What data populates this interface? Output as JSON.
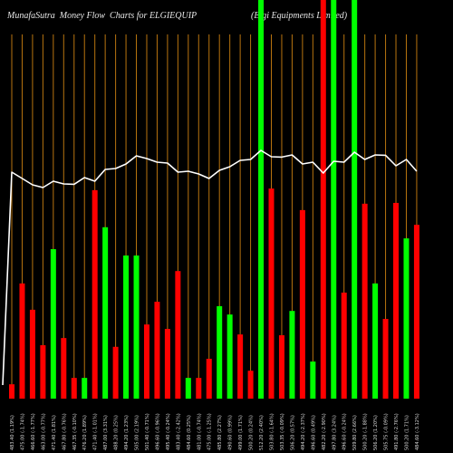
{
  "colors": {
    "background": "#000000",
    "grid": "#b8740f",
    "price_line": "#ffffff",
    "text": "#e6e6e6",
    "tick_text": "#dcdcdc"
  },
  "chart_data": {
    "type": "bar",
    "title": "MunafaSutra  Money Flow  Charts for ELGIEQUIP",
    "subtitle": "(Elgi Equipments Limited)",
    "grid": true,
    "ylim": [
      0,
      100
    ],
    "categories": [
      "483.40 (1.19%)",
      "475.00 (-1.74%)",
      "466.60 (-1.77%)",
      "463.00 (-0.77%)",
      "471.40 (1.81%)",
      "467.80 (-0.76%)",
      "467.35 (-0.10%)",
      "476.20 (1.89%)",
      "471.40 (-1.01%)",
      "487.00 (3.31%)",
      "488.20 (0.25%)",
      "494.20 (1.23%)",
      "505.00 (2.19%)",
      "501.40 (-0.71%)",
      "496.60 (-0.96%)",
      "495.40 (-0.24%)",
      "483.40 (-2.42%)",
      "484.60 (0.25%)",
      "481.00 (-0.74%)",
      "475.00 (-1.25%)",
      "485.80 (2.27%)",
      "490.60 (0.99%)",
      "499.00 (1.71%)",
      "500.20 (0.24%)",
      "512.20 (2.40%)",
      "503.80 (-1.64%)",
      "503.35 (-0.09%)",
      "506.20 (0.57%)",
      "494.20 (-2.37%)",
      "496.60 (0.49%)",
      "482.20 (-2.90%)",
      "497.80 (3.24%)",
      "496.60 (-0.24%)",
      "509.80 (2.66%)",
      "500.20 (-1.88%)",
      "506.20 (1.20%)",
      "505.75 (-0.09%)",
      "491.80 (-2.76%)",
      "500.20 (1.71%)",
      "484.60 (-3.12%)"
    ],
    "series": [
      {
        "type": "bar",
        "values": [
          3.6,
          28.9,
          22.3,
          13.4,
          37.5,
          15.2,
          5.2,
          5.2,
          52.3,
          43.0,
          13.0,
          35.9,
          35.9,
          18.6,
          24.3,
          17.5,
          32.0,
          5.2,
          5.2,
          10.0,
          23.2,
          21.1,
          16.1,
          7.0,
          100,
          52.7,
          15.9,
          22.0,
          47.3,
          9.3,
          100,
          100,
          26.6,
          100,
          48.9,
          28.9,
          20.0,
          49.1,
          40.2,
          43.6
        ],
        "colors": [
          "#ff0000",
          "#ff0000",
          "#ff0000",
          "#ff0000",
          "#00ff00",
          "#ff0000",
          "#ff0000",
          "#00ff00",
          "#ff0000",
          "#00ff00",
          "#ff0000",
          "#00ff00",
          "#00ff00",
          "#ff0000",
          "#ff0000",
          "#ff0000",
          "#ff0000",
          "#00ff00",
          "#ff0000",
          "#ff0000",
          "#00ff00",
          "#00ff00",
          "#ff0000",
          "#ff0000",
          "#00ff00",
          "#ff0000",
          "#ff0000",
          "#00ff00",
          "#ff0000",
          "#00ff00",
          "#ff0000",
          "#00ff00",
          "#ff0000",
          "#00ff00",
          "#ff0000",
          "#00ff00",
          "#ff0000",
          "#ff0000",
          "#00ff00",
          "#ff0000"
        ]
      },
      {
        "type": "line",
        "values": [
          483.4,
          475.0,
          466.6,
          463.0,
          471.4,
          467.8,
          467.35,
          476.2,
          471.4,
          487.0,
          488.2,
          494.2,
          505.0,
          501.4,
          496.6,
          495.4,
          483.4,
          484.6,
          481.0,
          475.0,
          485.8,
          490.6,
          499.0,
          500.2,
          512.2,
          503.8,
          503.35,
          506.2,
          494.2,
          496.6,
          482.2,
          497.8,
          496.6,
          509.8,
          500.2,
          506.2,
          505.75,
          491.8,
          500.2,
          484.6
        ]
      }
    ]
  }
}
